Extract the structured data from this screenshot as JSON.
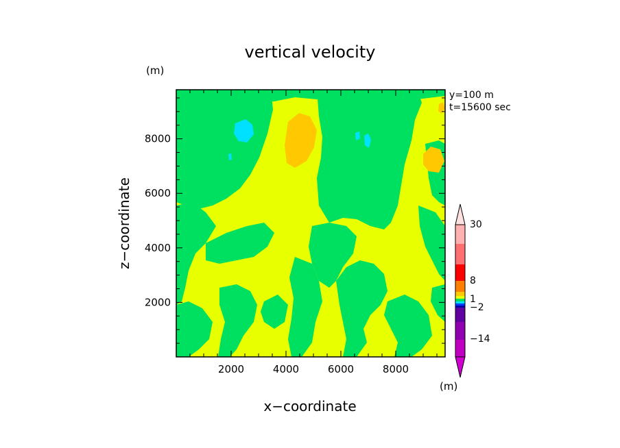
{
  "chart_data": {
    "type": "heatmap",
    "title": "vertical velocity",
    "units_label": "(m)",
    "info_lines": [
      "y=100 m",
      "t=15600 sec"
    ],
    "xlabel": "x−coordinate",
    "ylabel": "z−coordinate",
    "xlim": [
      0,
      9800
    ],
    "ylim": [
      0,
      9800
    ],
    "xticks": [
      2000,
      4000,
      6000,
      8000
    ],
    "yticks": [
      2000,
      4000,
      6000,
      8000
    ],
    "colorbar": {
      "units_label": "(m)",
      "labels": [
        {
          "text": "30",
          "value": 30
        },
        {
          "text": "8",
          "value": 8
        },
        {
          "text": "1",
          "value": 1
        },
        {
          "text": "−2",
          "value": -2
        },
        {
          "text": "−14",
          "value": -14
        }
      ],
      "levels": [
        {
          "color": "#c000c0"
        },
        {
          "color": "#9000b0"
        },
        {
          "color": "#6000a0"
        },
        {
          "color": "#0000b0"
        },
        {
          "color": "#0040ff"
        },
        {
          "color": "#00e0ff"
        },
        {
          "color": "#00e060"
        },
        {
          "color": "#e8ff00"
        },
        {
          "color": "#ffc800"
        },
        {
          "color": "#ff8000"
        },
        {
          "color": "#ff0000"
        },
        {
          "color": "#ff7070"
        },
        {
          "color": "#ffb0b0"
        },
        {
          "color": "#ffd0d0"
        }
      ],
      "arrow_colors": {
        "top": "#ffe0e0",
        "bottom": "#d000d0"
      }
    },
    "colors": {
      "background_field": "#e8ff00",
      "green": "#00e060",
      "cyan": "#00e0ff",
      "orange": "#ffc800"
    }
  }
}
